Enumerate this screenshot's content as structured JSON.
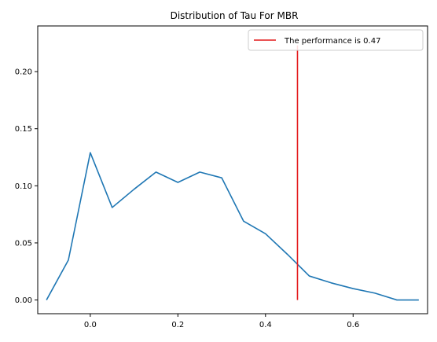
{
  "chart_data": {
    "type": "line",
    "title": "Distribution of Tau For MBR",
    "xlabel": "",
    "ylabel": "",
    "xlim": [
      -0.12,
      0.77
    ],
    "ylim": [
      -0.012,
      0.24
    ],
    "x_ticks": [
      0.0,
      0.2,
      0.4,
      0.6
    ],
    "x_tick_labels": [
      "0.0",
      "0.2",
      "0.4",
      "0.6"
    ],
    "y_ticks": [
      0.0,
      0.05,
      0.1,
      0.15,
      0.2
    ],
    "y_tick_labels": [
      "0.00",
      "0.05",
      "0.10",
      "0.15",
      "0.20"
    ],
    "grid": false,
    "legend_position": "top-right",
    "series": [
      {
        "color": "#1f77b4",
        "x": [
          -0.1,
          -0.05,
          0.0,
          0.05,
          0.1,
          0.15,
          0.2,
          0.25,
          0.3,
          0.35,
          0.4,
          0.45,
          0.5,
          0.55,
          0.6,
          0.65,
          0.7,
          0.75
        ],
        "y": [
          0.0,
          0.035,
          0.129,
          0.081,
          0.097,
          0.112,
          0.103,
          0.112,
          0.107,
          0.069,
          0.058,
          0.04,
          0.021,
          0.015,
          0.01,
          0.006,
          0.0,
          0.0
        ]
      }
    ],
    "vlines": [
      {
        "name": "The performance is 0.47",
        "x": 0.473,
        "y_range": [
          0.0,
          0.223
        ],
        "color": "#e41a1c"
      }
    ]
  }
}
